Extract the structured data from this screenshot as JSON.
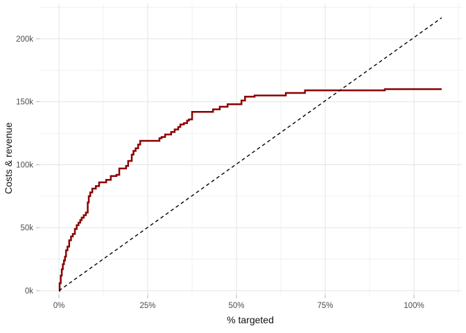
{
  "chart_data": {
    "type": "line",
    "subtype": "step-gains-curve",
    "title": "",
    "xlabel": "% targeted",
    "ylabel": "Costs & revenue",
    "x_unit": "percent",
    "y_unit": "thousands",
    "x_tick_values": [
      0,
      25,
      50,
      75,
      100
    ],
    "x_tick_labels": [
      "0%",
      "25%",
      "50%",
      "75%",
      "100%"
    ],
    "x_minor_values": [
      12.5,
      37.5,
      62.5,
      87.5,
      112.5
    ],
    "y_tick_values": [
      0,
      50,
      100,
      150,
      200
    ],
    "y_tick_labels": [
      "0k",
      "50k",
      "100k",
      "150k",
      "200k"
    ],
    "y_minor_values": [
      25,
      75,
      125,
      175,
      225
    ],
    "xlim": [
      0,
      107.8
    ],
    "ylim": [
      0,
      216.7
    ],
    "grid": "on",
    "legend": "none",
    "colors": {
      "curve": "#8B0000",
      "reference": "#000000",
      "grid_major": "#E3E3E3",
      "grid_minor": "#F1F1F1",
      "tick": "#B3B3B3",
      "tick_label": "#4D4D4D",
      "axis_title": "#111111",
      "background": "#FFFFFF"
    },
    "series": [
      {
        "name": "cumulative-costs-and-revenue",
        "style": "step",
        "color": "#8B0000",
        "width": 2.5,
        "points": [
          [
            0,
            0
          ],
          [
            0.2,
            6
          ],
          [
            0.5,
            12
          ],
          [
            0.8,
            17
          ],
          [
            1.1,
            21
          ],
          [
            1.4,
            24
          ],
          [
            1.7,
            27
          ],
          [
            2.0,
            32
          ],
          [
            2.4,
            35
          ],
          [
            2.9,
            40
          ],
          [
            3.4,
            43
          ],
          [
            3.9,
            45
          ],
          [
            4.5,
            49
          ],
          [
            5.0,
            52
          ],
          [
            5.5,
            54
          ],
          [
            6.0,
            56
          ],
          [
            6.4,
            58
          ],
          [
            7.0,
            60
          ],
          [
            7.6,
            62
          ],
          [
            8.1,
            70
          ],
          [
            8.4,
            75
          ],
          [
            8.8,
            78
          ],
          [
            9.4,
            81
          ],
          [
            10.4,
            83
          ],
          [
            11.3,
            86
          ],
          [
            13.3,
            88
          ],
          [
            14.6,
            91
          ],
          [
            16.2,
            92
          ],
          [
            17.0,
            97
          ],
          [
            18.9,
            99
          ],
          [
            19.5,
            103
          ],
          [
            20.5,
            108
          ],
          [
            21.0,
            111
          ],
          [
            21.6,
            113
          ],
          [
            22.3,
            116
          ],
          [
            22.9,
            119
          ],
          [
            28.3,
            121
          ],
          [
            28.9,
            122
          ],
          [
            29.9,
            124
          ],
          [
            31.6,
            126
          ],
          [
            32.6,
            128
          ],
          [
            33.6,
            130
          ],
          [
            34.2,
            132
          ],
          [
            35.2,
            133
          ],
          [
            36.1,
            135
          ],
          [
            36.6,
            136
          ],
          [
            37.5,
            142
          ],
          [
            43.4,
            144
          ],
          [
            45.3,
            146
          ],
          [
            47.5,
            148
          ],
          [
            51.4,
            151
          ],
          [
            52.4,
            154
          ],
          [
            55.1,
            155
          ],
          [
            63.9,
            157
          ],
          [
            69.3,
            159
          ],
          [
            91.8,
            160
          ],
          [
            107.8,
            160
          ]
        ]
      },
      {
        "name": "diagonal-reference",
        "style": "dashed",
        "color": "#000000",
        "width": 1.4,
        "points": [
          [
            0,
            0
          ],
          [
            107.8,
            216.7
          ]
        ]
      }
    ]
  }
}
